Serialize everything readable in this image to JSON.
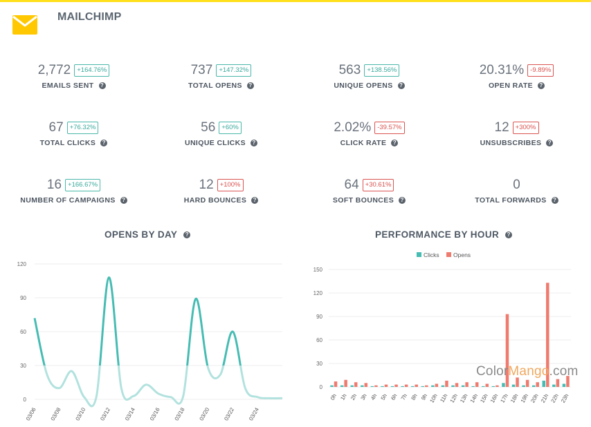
{
  "header": {
    "title": "MAILCHIMP",
    "logo_icon": "envelope-icon",
    "accent_color": "#ffe01b"
  },
  "metrics": [
    {
      "value": "2,772",
      "change": "+164.76%",
      "trend": "up",
      "label": "EMAILS SENT"
    },
    {
      "value": "737",
      "change": "+147.32%",
      "trend": "up",
      "label": "TOTAL OPENS"
    },
    {
      "value": "563",
      "change": "+138.56%",
      "trend": "up",
      "label": "UNIQUE OPENS"
    },
    {
      "value": "20.31%",
      "change": "-9.89%",
      "trend": "down",
      "label": "OPEN RATE"
    },
    {
      "value": "67",
      "change": "+76.32%",
      "trend": "up",
      "label": "TOTAL CLICKS"
    },
    {
      "value": "56",
      "change": "+60%",
      "trend": "up",
      "label": "UNIQUE CLICKS"
    },
    {
      "value": "2.02%",
      "change": "-39.57%",
      "trend": "down",
      "label": "CLICK RATE"
    },
    {
      "value": "12",
      "change": "+300%",
      "trend": "down",
      "label": "UNSUBSCRIBES"
    },
    {
      "value": "16",
      "change": "+166.67%",
      "trend": "up",
      "label": "NUMBER OF CAMPAIGNS"
    },
    {
      "value": "12",
      "change": "+100%",
      "trend": "down",
      "label": "HARD BOUNCES"
    },
    {
      "value": "64",
      "change": "+30.61%",
      "trend": "down",
      "label": "SOFT BOUNCES"
    },
    {
      "value": "0",
      "change": "",
      "trend": "none",
      "label": "TOTAL FORWARDS"
    }
  ],
  "charts": {
    "opens_title": "OPENS BY DAY",
    "perf_title": "PERFORMANCE BY HOUR"
  },
  "colors": {
    "teal": "#46bcb3",
    "teal_light": "#b2e2de",
    "red": "#ef7b6f",
    "up": "#3aa99c",
    "down": "#d9534f"
  },
  "watermark": {
    "a": "Color",
    "b": "Mango",
    "c": ".com"
  },
  "chart_data": [
    {
      "type": "line",
      "title": "OPENS BY DAY",
      "x": [
        "03/06",
        "03/07",
        "03/08",
        "03/09",
        "03/10",
        "03/11",
        "03/12",
        "03/13",
        "03/14",
        "03/15",
        "03/16",
        "03/17",
        "03/18",
        "03/19",
        "03/20",
        "03/21",
        "03/22",
        "03/23",
        "03/24",
        "03/25",
        "03/26"
      ],
      "x_tick_labels": [
        "03/06",
        "03/08",
        "03/10",
        "03/12",
        "03/14",
        "03/16",
        "03/18",
        "03/20",
        "03/22",
        "03/24"
      ],
      "series": [
        {
          "values": [
            72,
            22,
            10,
            25,
            2,
            3,
            108,
            10,
            3,
            13,
            5,
            2,
            3,
            89,
            28,
            22,
            60,
            10,
            2,
            1,
            1
          ]
        }
      ],
      "ylim": [
        0,
        120
      ],
      "yticks": [
        0,
        30,
        60,
        90,
        120
      ],
      "grid": true
    },
    {
      "type": "bar",
      "title": "PERFORMANCE BY HOUR",
      "categories": [
        "0h",
        "1h",
        "2h",
        "3h",
        "4h",
        "5h",
        "6h",
        "7h",
        "8h",
        "9h",
        "10h",
        "11h",
        "12h",
        "13h",
        "14h",
        "15h",
        "16h",
        "17h",
        "18h",
        "19h",
        "20h",
        "21h",
        "22h",
        "23h"
      ],
      "series": [
        {
          "name": "Clicks",
          "values": [
            2,
            2,
            2,
            2,
            1,
            1,
            1,
            1,
            1,
            1,
            2,
            2,
            2,
            2,
            1,
            1,
            1,
            5,
            3,
            2,
            2,
            8,
            3,
            4
          ]
        },
        {
          "name": "Opens",
          "values": [
            7,
            9,
            6,
            5,
            2,
            3,
            3,
            3,
            3,
            2,
            4,
            8,
            5,
            6,
            6,
            4,
            2,
            93,
            12,
            9,
            6,
            133,
            10,
            14
          ]
        }
      ],
      "ylim": [
        0,
        150
      ],
      "yticks": [
        0,
        30,
        60,
        90,
        120,
        150
      ],
      "legend": "top-center",
      "grid": true
    }
  ]
}
